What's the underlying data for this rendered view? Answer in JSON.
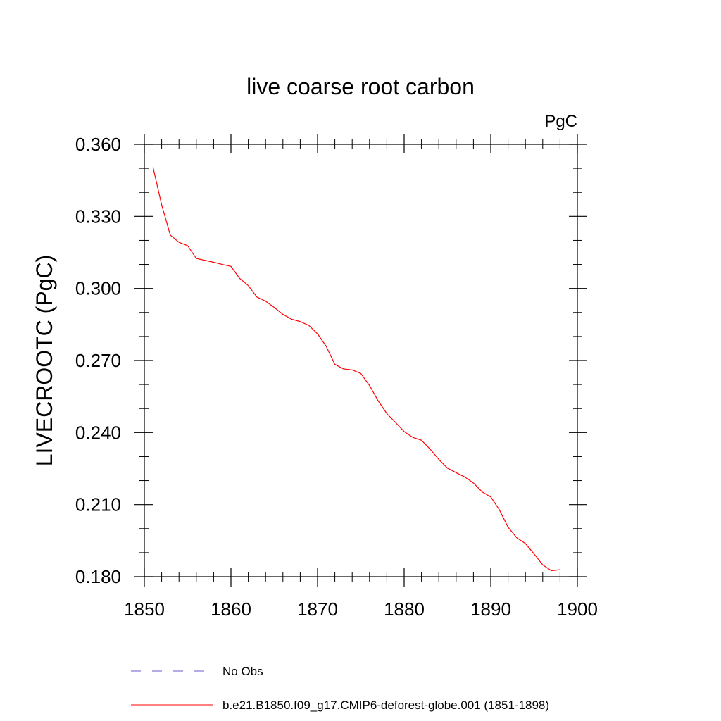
{
  "chart_data": {
    "type": "line",
    "title": "live coarse root carbon",
    "units_label": "PgC",
    "xlabel": "",
    "ylabel": "LIVECROOTC  (PgC)",
    "xlim": [
      1850,
      1900
    ],
    "ylim": [
      0.18,
      0.36
    ],
    "xticks": [
      1850,
      1860,
      1870,
      1880,
      1890,
      1900
    ],
    "yticks": [
      0.18,
      0.21,
      0.24,
      0.27,
      0.3,
      0.33,
      0.36
    ],
    "ytick_labels": [
      "0.180",
      "0.210",
      "0.240",
      "0.270",
      "0.300",
      "0.330",
      "0.360"
    ],
    "x_minor_step": 2,
    "y_minor_step": 0.01,
    "grid": false,
    "series": [
      {
        "name": "b.e21.B1850.f09_g17.CMIP6-deforest-globe.001 (1851-1898)",
        "color": "#ff0000",
        "style": "solid",
        "x": [
          1851,
          1852,
          1853,
          1854,
          1855,
          1856,
          1857,
          1858,
          1859,
          1860,
          1861,
          1862,
          1863,
          1864,
          1865,
          1866,
          1867,
          1868,
          1869,
          1870,
          1871,
          1872,
          1873,
          1874,
          1875,
          1876,
          1877,
          1878,
          1879,
          1880,
          1881,
          1882,
          1883,
          1884,
          1885,
          1886,
          1887,
          1888,
          1889,
          1890,
          1891,
          1892,
          1893,
          1894,
          1895,
          1896,
          1897,
          1898
        ],
        "values": [
          0.3505,
          0.3348,
          0.3222,
          0.3192,
          0.3178,
          0.3125,
          0.3117,
          0.3109,
          0.31,
          0.3092,
          0.3042,
          0.3012,
          0.2964,
          0.2947,
          0.2921,
          0.2892,
          0.2872,
          0.2862,
          0.2846,
          0.2811,
          0.2759,
          0.2684,
          0.2665,
          0.2661,
          0.2646,
          0.2596,
          0.2532,
          0.2479,
          0.2442,
          0.2404,
          0.238,
          0.2368,
          0.2331,
          0.2288,
          0.2252,
          0.2233,
          0.2215,
          0.219,
          0.2153,
          0.2132,
          0.2078,
          0.2006,
          0.1962,
          0.1938,
          0.1895,
          0.1849,
          0.1825,
          0.1829
        ]
      }
    ],
    "legend": [
      {
        "label": "No Obs",
        "color": "#6a5acd",
        "style": "dashed"
      },
      {
        "label": "b.e21.B1850.f09_g17.CMIP6-deforest-globe.001 (1851-1898)",
        "color": "#ff0000",
        "style": "solid"
      }
    ],
    "legend_position": "bottom"
  }
}
